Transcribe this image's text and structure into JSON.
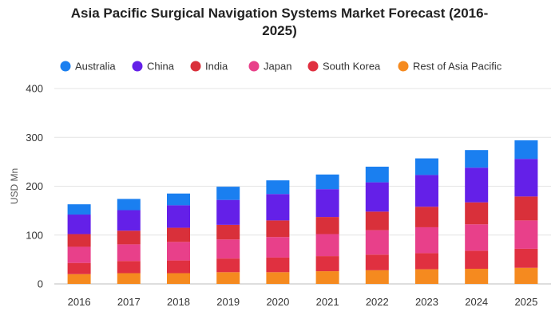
{
  "chart_data": {
    "type": "bar",
    "stacked": true,
    "title_line1": "Asia Pacific Surgical Navigation Systems Market Forecast (2016-",
    "title_line2": "2025)",
    "xlabel": "",
    "ylabel": "USD Mn",
    "ylim": [
      0,
      400
    ],
    "yticks": [
      "0",
      "100",
      "200",
      "300",
      "400"
    ],
    "grid": true,
    "legend_position": "top",
    "categories": [
      "2016",
      "2017",
      "2018",
      "2019",
      "2020",
      "2021",
      "2022",
      "2023",
      "2024",
      "2025"
    ],
    "series": [
      {
        "name": "Rest of Asia Pacific",
        "color": "#f58a1f",
        "values": [
          20,
          22,
          22,
          24,
          24,
          26,
          28,
          30,
          31,
          33
        ]
      },
      {
        "name": "South Korea",
        "color": "#e03040",
        "values": [
          23,
          25,
          26,
          28,
          30,
          31,
          32,
          33,
          37,
          39
        ]
      },
      {
        "name": "Japan",
        "color": "#e8408a",
        "values": [
          33,
          34,
          38,
          39,
          42,
          45,
          50,
          53,
          54,
          58
        ]
      },
      {
        "name": "India",
        "color": "#d9303a",
        "values": [
          26,
          28,
          29,
          30,
          34,
          35,
          38,
          42,
          45,
          49
        ]
      },
      {
        "name": "China",
        "color": "#6420e8",
        "values": [
          40,
          42,
          46,
          51,
          54,
          57,
          60,
          65,
          71,
          77
        ]
      },
      {
        "name": "Australia",
        "color": "#1a7ff0",
        "values": [
          21,
          23,
          24,
          27,
          28,
          30,
          32,
          34,
          36,
          38
        ]
      }
    ],
    "legend_order": [
      "Australia",
      "China",
      "India",
      "Japan",
      "South Korea",
      "Rest of Asia Pacific"
    ]
  }
}
